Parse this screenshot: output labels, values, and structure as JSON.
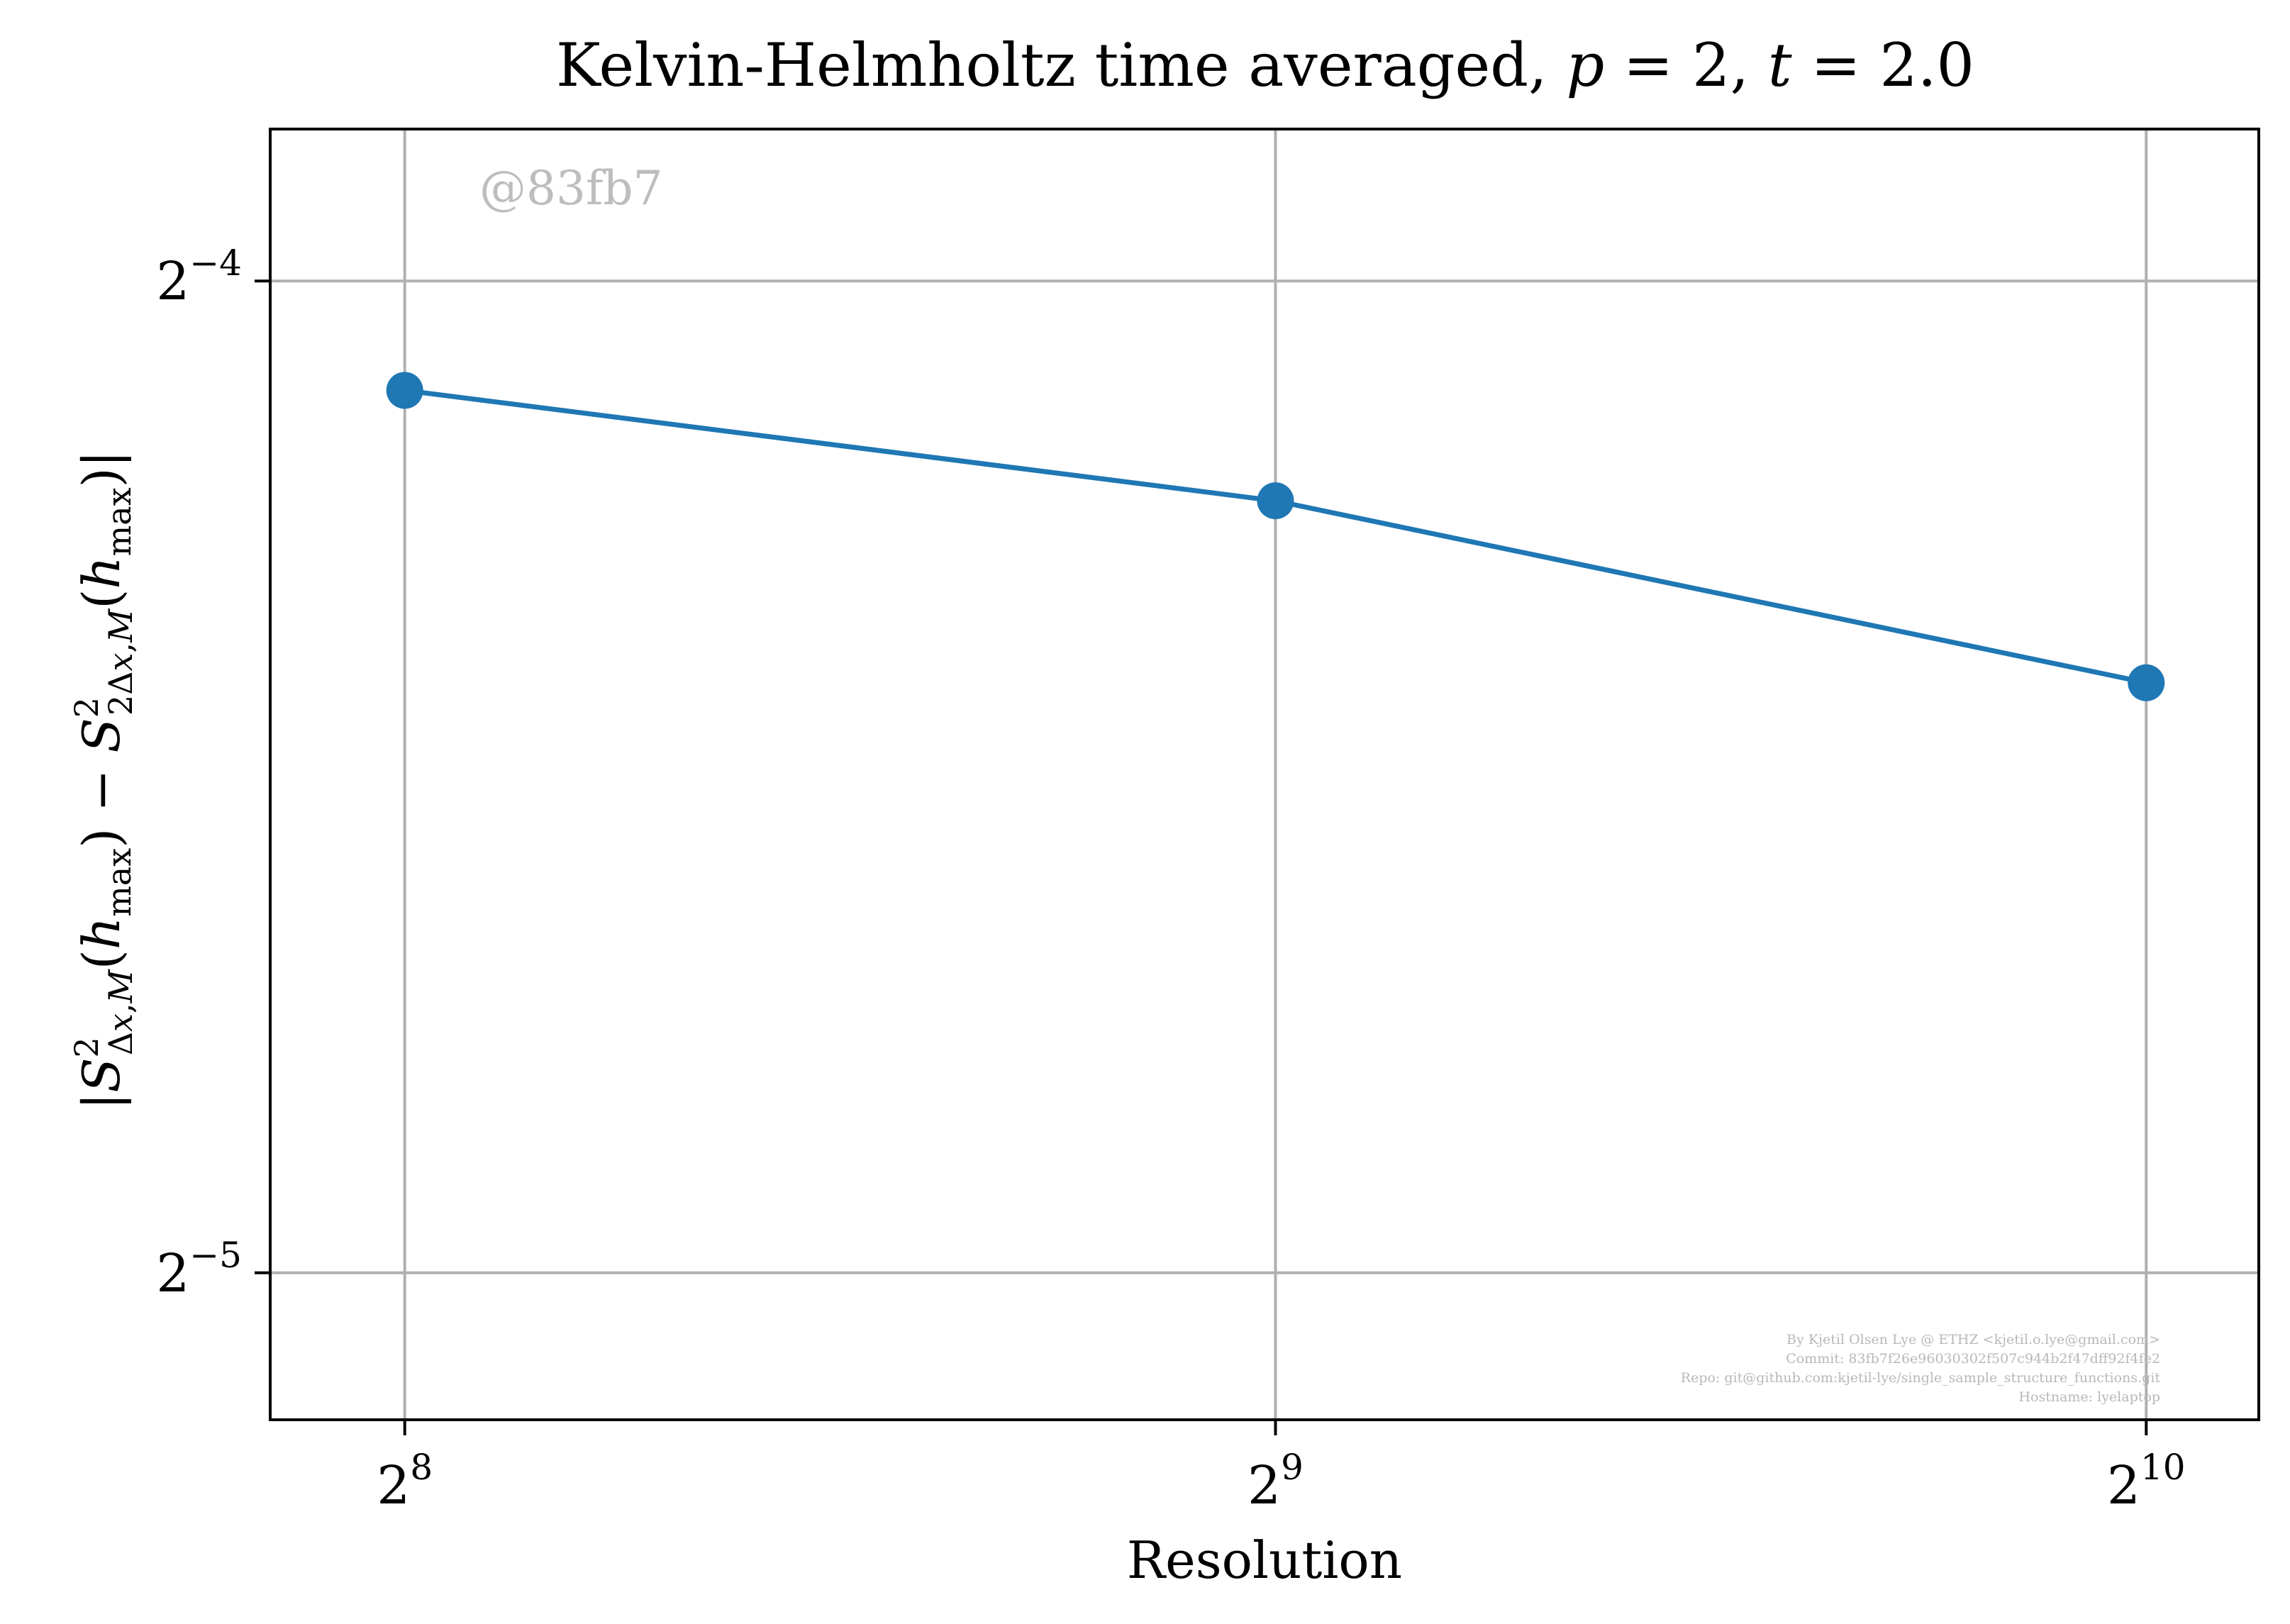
{
  "chart_data": {
    "type": "line",
    "title": "Kelvin-Helmholtz time averaged, p = 2, t = 2.0",
    "xlabel": "Resolution",
    "ylabel": "|S²Δx,M(hmax) − S²2Δx,M(hmax)|",
    "x_scale": "log2",
    "y_scale": "log2",
    "xlim": [
      230,
      1120
    ],
    "ylim": [
      0.0282,
      0.0695
    ],
    "x_ticks": [
      {
        "value": 256,
        "base": "2",
        "exp": "8"
      },
      {
        "value": 512,
        "base": "2",
        "exp": "9"
      },
      {
        "value": 1024,
        "base": "2",
        "exp": "10"
      }
    ],
    "y_ticks": [
      {
        "value": 0.0625,
        "base": "2",
        "exp": "−4"
      },
      {
        "value": 0.03125,
        "base": "2",
        "exp": "−5"
      }
    ],
    "grid": true,
    "legend": "none",
    "color": "#1f77b4",
    "series": [
      {
        "x": [
          256,
          512,
          1024
        ],
        "y": [
          0.0579,
          0.0536,
          0.0472
        ]
      }
    ]
  },
  "watermark": "@83fb7",
  "credits": [
    "By Kjetil Olsen Lye @ ETHZ <kjetil.o.lye@gmail.com>",
    "Commit: 83fb7f26e96030302f507c944b2f47dff92f4fe2",
    "Repo: git@github.com:kjetil-lye/single_sample_structure_functions.git",
    "Hostname: lyelaptop"
  ]
}
